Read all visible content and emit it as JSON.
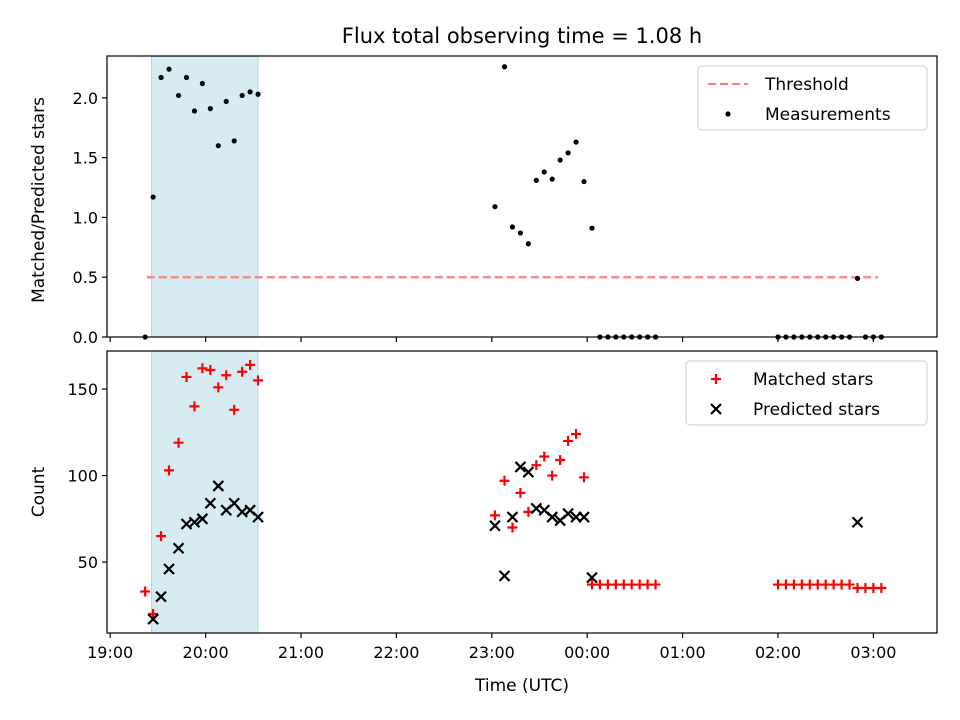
{
  "title": "Flux total observing time = 1.08 h",
  "xlabel": "Time (UTC)",
  "x_ticks": [
    "19:00",
    "20:00",
    "21:00",
    "22:00",
    "23:00",
    "00:00",
    "01:00",
    "02:00",
    "03:00"
  ],
  "highlight_span": [
    "19:26",
    "20:33"
  ],
  "chart_data": [
    {
      "type": "scatter",
      "ylabel": "Matched/Predicted stars",
      "ylim": [
        0,
        2.35
      ],
      "y_ticks": [
        "0.0",
        "0.5",
        "1.0",
        "1.5",
        "2.0"
      ],
      "threshold": {
        "name": "Threshold",
        "value": 0.5,
        "x_range": [
          "19:23",
          "23:59"
        ],
        "x_range_2": [
          "00:00",
          "03:03"
        ],
        "color": "#ff7f7f"
      },
      "legend": {
        "position": "top-right",
        "entries": [
          "Threshold",
          "Measurements"
        ]
      },
      "series": [
        {
          "name": "Measurements",
          "color": "#000000",
          "points": [
            [
              "19:22",
              0.0
            ],
            [
              "19:27",
              1.17
            ],
            [
              "19:32",
              2.17
            ],
            [
              "19:37",
              2.24
            ],
            [
              "19:43",
              2.02
            ],
            [
              "19:48",
              2.17
            ],
            [
              "19:53",
              1.89
            ],
            [
              "19:58",
              2.12
            ],
            [
              "20:03",
              1.91
            ],
            [
              "20:08",
              1.6
            ],
            [
              "20:13",
              1.97
            ],
            [
              "20:18",
              1.64
            ],
            [
              "20:23",
              2.02
            ],
            [
              "20:28",
              2.05
            ],
            [
              "20:33",
              2.03
            ],
            [
              "23:02",
              1.09
            ],
            [
              "23:08",
              2.26
            ],
            [
              "23:13",
              0.92
            ],
            [
              "23:18",
              0.87
            ],
            [
              "23:23",
              0.78
            ],
            [
              "23:28",
              1.31
            ],
            [
              "23:33",
              1.38
            ],
            [
              "23:38",
              1.32
            ],
            [
              "23:43",
              1.48
            ],
            [
              "23:48",
              1.54
            ],
            [
              "23:53",
              1.63
            ],
            [
              "23:58",
              1.3
            ],
            [
              "00:03",
              0.91
            ],
            [
              "00:08",
              0.0
            ],
            [
              "00:13",
              0.0
            ],
            [
              "00:18",
              0.0
            ],
            [
              "00:23",
              0.0
            ],
            [
              "00:28",
              0.0
            ],
            [
              "00:33",
              0.0
            ],
            [
              "00:38",
              0.0
            ],
            [
              "00:43",
              0.0
            ],
            [
              "02:00",
              0.0
            ],
            [
              "02:05",
              0.0
            ],
            [
              "02:10",
              0.0
            ],
            [
              "02:15",
              0.0
            ],
            [
              "02:20",
              0.0
            ],
            [
              "02:25",
              0.0
            ],
            [
              "02:30",
              0.0
            ],
            [
              "02:35",
              0.0
            ],
            [
              "02:40",
              0.0
            ],
            [
              "02:45",
              0.0
            ],
            [
              "02:50",
              0.49
            ],
            [
              "02:55",
              0.0
            ],
            [
              "03:00",
              0.0
            ],
            [
              "03:05",
              0.0
            ]
          ]
        }
      ]
    },
    {
      "type": "scatter",
      "ylabel": "Count",
      "ylim": [
        9,
        172
      ],
      "y_ticks": [
        "50",
        "100",
        "150"
      ],
      "legend": {
        "position": "top-right",
        "entries": [
          "Matched stars",
          "Predicted stars"
        ]
      },
      "series": [
        {
          "name": "Matched stars",
          "color": "#ff0000",
          "marker": "+",
          "points": [
            [
              "19:22",
              33
            ],
            [
              "19:27",
              20
            ],
            [
              "19:32",
              65
            ],
            [
              "19:37",
              103
            ],
            [
              "19:43",
              119
            ],
            [
              "19:48",
              157
            ],
            [
              "19:53",
              140
            ],
            [
              "19:58",
              162
            ],
            [
              "20:03",
              161
            ],
            [
              "20:08",
              151
            ],
            [
              "20:13",
              158
            ],
            [
              "20:18",
              138
            ],
            [
              "20:23",
              160
            ],
            [
              "20:28",
              164
            ],
            [
              "20:33",
              155
            ],
            [
              "23:02",
              77
            ],
            [
              "23:08",
              97
            ],
            [
              "23:13",
              70
            ],
            [
              "23:18",
              90
            ],
            [
              "23:23",
              79
            ],
            [
              "23:28",
              106
            ],
            [
              "23:33",
              111
            ],
            [
              "23:38",
              100
            ],
            [
              "23:43",
              109
            ],
            [
              "23:48",
              120
            ],
            [
              "23:53",
              124
            ],
            [
              "23:58",
              99
            ],
            [
              "00:03",
              37
            ],
            [
              "00:08",
              37
            ],
            [
              "00:13",
              37
            ],
            [
              "00:18",
              37
            ],
            [
              "00:23",
              37
            ],
            [
              "00:28",
              37
            ],
            [
              "00:33",
              37
            ],
            [
              "00:38",
              37
            ],
            [
              "00:43",
              37
            ],
            [
              "02:00",
              37
            ],
            [
              "02:05",
              37
            ],
            [
              "02:10",
              37
            ],
            [
              "02:15",
              37
            ],
            [
              "02:20",
              37
            ],
            [
              "02:25",
              37
            ],
            [
              "02:30",
              37
            ],
            [
              "02:35",
              37
            ],
            [
              "02:40",
              37
            ],
            [
              "02:45",
              37
            ],
            [
              "02:50",
              35
            ],
            [
              "02:55",
              35
            ],
            [
              "03:00",
              35
            ],
            [
              "03:05",
              35
            ]
          ]
        },
        {
          "name": "Predicted stars",
          "color": "#000000",
          "marker": "x",
          "points": [
            [
              "19:27",
              17
            ],
            [
              "19:32",
              30
            ],
            [
              "19:37",
              46
            ],
            [
              "19:43",
              58
            ],
            [
              "19:48",
              72
            ],
            [
              "19:53",
              73
            ],
            [
              "19:58",
              75
            ],
            [
              "20:03",
              84
            ],
            [
              "20:08",
              94
            ],
            [
              "20:13",
              80
            ],
            [
              "20:18",
              84
            ],
            [
              "20:23",
              79
            ],
            [
              "20:28",
              80
            ],
            [
              "20:33",
              76
            ],
            [
              "23:02",
              71
            ],
            [
              "23:08",
              42
            ],
            [
              "23:13",
              76
            ],
            [
              "23:18",
              105
            ],
            [
              "23:23",
              102
            ],
            [
              "23:28",
              81
            ],
            [
              "23:33",
              80
            ],
            [
              "23:38",
              76
            ],
            [
              "23:43",
              74
            ],
            [
              "23:48",
              78
            ],
            [
              "23:53",
              76
            ],
            [
              "23:58",
              76
            ],
            [
              "00:03",
              41
            ],
            [
              "02:50",
              73
            ]
          ]
        }
      ]
    }
  ]
}
